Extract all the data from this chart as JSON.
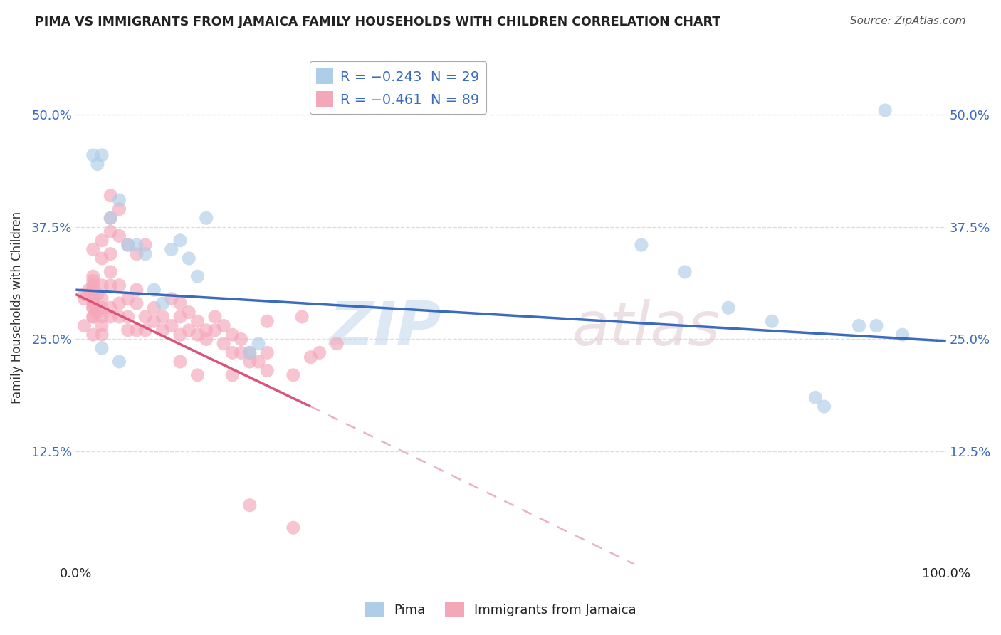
{
  "title": "PIMA VS IMMIGRANTS FROM JAMAICA FAMILY HOUSEHOLDS WITH CHILDREN CORRELATION CHART",
  "source": "Source: ZipAtlas.com",
  "ylabel": "Family Households with Children",
  "yticks": [
    "12.5%",
    "25.0%",
    "37.5%",
    "50.0%"
  ],
  "ytick_vals": [
    0.125,
    0.25,
    0.375,
    0.5
  ],
  "xlim": [
    0.0,
    1.0
  ],
  "ylim": [
    0.0,
    0.57
  ],
  "pima_color": "#aecde8",
  "jamaica_color": "#f4a7b9",
  "pima_points": [
    [
      0.02,
      0.455
    ],
    [
      0.025,
      0.445
    ],
    [
      0.03,
      0.455
    ],
    [
      0.04,
      0.385
    ],
    [
      0.05,
      0.405
    ],
    [
      0.06,
      0.355
    ],
    [
      0.07,
      0.355
    ],
    [
      0.08,
      0.345
    ],
    [
      0.09,
      0.305
    ],
    [
      0.1,
      0.29
    ],
    [
      0.11,
      0.35
    ],
    [
      0.12,
      0.36
    ],
    [
      0.13,
      0.34
    ],
    [
      0.14,
      0.32
    ],
    [
      0.15,
      0.385
    ],
    [
      0.2,
      0.235
    ],
    [
      0.21,
      0.245
    ],
    [
      0.65,
      0.355
    ],
    [
      0.7,
      0.325
    ],
    [
      0.75,
      0.285
    ],
    [
      0.8,
      0.27
    ],
    [
      0.85,
      0.185
    ],
    [
      0.86,
      0.175
    ],
    [
      0.9,
      0.265
    ],
    [
      0.92,
      0.265
    ],
    [
      0.95,
      0.255
    ],
    [
      0.93,
      0.505
    ],
    [
      0.03,
      0.24
    ],
    [
      0.05,
      0.225
    ]
  ],
  "jamaica_points": [
    [
      0.01,
      0.3
    ],
    [
      0.01,
      0.295
    ],
    [
      0.015,
      0.305
    ],
    [
      0.02,
      0.315
    ],
    [
      0.02,
      0.29
    ],
    [
      0.02,
      0.31
    ],
    [
      0.02,
      0.285
    ],
    [
      0.02,
      0.275
    ],
    [
      0.02,
      0.305
    ],
    [
      0.02,
      0.285
    ],
    [
      0.02,
      0.295
    ],
    [
      0.02,
      0.32
    ],
    [
      0.025,
      0.3
    ],
    [
      0.025,
      0.28
    ],
    [
      0.03,
      0.295
    ],
    [
      0.03,
      0.275
    ],
    [
      0.03,
      0.31
    ],
    [
      0.03,
      0.265
    ],
    [
      0.03,
      0.34
    ],
    [
      0.03,
      0.285
    ],
    [
      0.04,
      0.285
    ],
    [
      0.04,
      0.31
    ],
    [
      0.04,
      0.275
    ],
    [
      0.04,
      0.325
    ],
    [
      0.04,
      0.37
    ],
    [
      0.04,
      0.385
    ],
    [
      0.05,
      0.29
    ],
    [
      0.05,
      0.275
    ],
    [
      0.05,
      0.31
    ],
    [
      0.06,
      0.275
    ],
    [
      0.06,
      0.295
    ],
    [
      0.06,
      0.26
    ],
    [
      0.07,
      0.26
    ],
    [
      0.07,
      0.29
    ],
    [
      0.07,
      0.305
    ],
    [
      0.08,
      0.275
    ],
    [
      0.08,
      0.26
    ],
    [
      0.09,
      0.27
    ],
    [
      0.09,
      0.285
    ],
    [
      0.1,
      0.275
    ],
    [
      0.1,
      0.26
    ],
    [
      0.11,
      0.295
    ],
    [
      0.11,
      0.265
    ],
    [
      0.12,
      0.275
    ],
    [
      0.12,
      0.255
    ],
    [
      0.12,
      0.29
    ],
    [
      0.13,
      0.26
    ],
    [
      0.13,
      0.28
    ],
    [
      0.14,
      0.255
    ],
    [
      0.14,
      0.27
    ],
    [
      0.15,
      0.26
    ],
    [
      0.15,
      0.25
    ],
    [
      0.16,
      0.26
    ],
    [
      0.16,
      0.275
    ],
    [
      0.17,
      0.245
    ],
    [
      0.17,
      0.265
    ],
    [
      0.18,
      0.255
    ],
    [
      0.18,
      0.235
    ],
    [
      0.19,
      0.25
    ],
    [
      0.19,
      0.235
    ],
    [
      0.2,
      0.235
    ],
    [
      0.2,
      0.225
    ],
    [
      0.21,
      0.225
    ],
    [
      0.22,
      0.215
    ],
    [
      0.22,
      0.235
    ],
    [
      0.25,
      0.21
    ],
    [
      0.27,
      0.23
    ],
    [
      0.01,
      0.265
    ],
    [
      0.02,
      0.255
    ],
    [
      0.02,
      0.35
    ],
    [
      0.03,
      0.36
    ],
    [
      0.04,
      0.345
    ],
    [
      0.05,
      0.365
    ],
    [
      0.06,
      0.355
    ],
    [
      0.07,
      0.345
    ],
    [
      0.08,
      0.355
    ],
    [
      0.04,
      0.41
    ],
    [
      0.05,
      0.395
    ],
    [
      0.2,
      0.065
    ],
    [
      0.25,
      0.04
    ],
    [
      0.26,
      0.275
    ],
    [
      0.3,
      0.245
    ],
    [
      0.12,
      0.225
    ],
    [
      0.14,
      0.21
    ],
    [
      0.18,
      0.21
    ],
    [
      0.28,
      0.235
    ],
    [
      0.22,
      0.27
    ],
    [
      0.02,
      0.275
    ],
    [
      0.03,
      0.255
    ]
  ],
  "pima_line": {
    "x": [
      0.0,
      1.0
    ],
    "y": [
      0.305,
      0.248
    ]
  },
  "jamaica_line_solid": {
    "x": [
      0.0,
      0.27
    ],
    "y": [
      0.3,
      0.175
    ]
  },
  "jamaica_line_dash": {
    "x": [
      0.27,
      1.0
    ],
    "y": [
      0.175,
      -0.17
    ]
  },
  "background_color": "#ffffff",
  "grid_color": "#dddddd"
}
